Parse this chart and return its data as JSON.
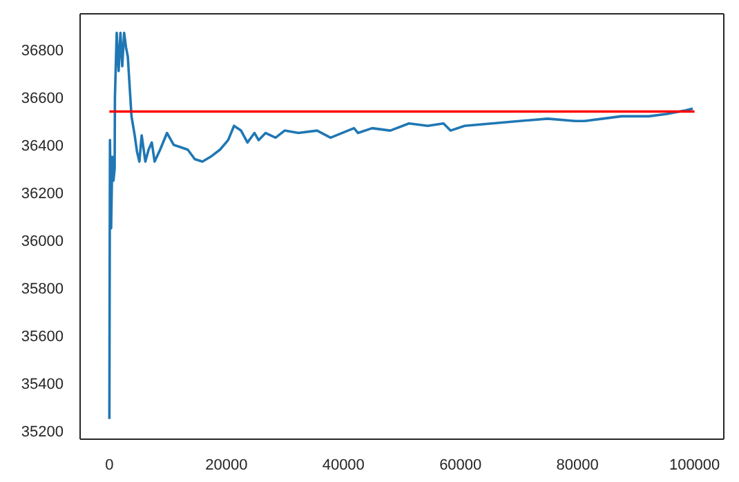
{
  "chart_data": {
    "type": "line",
    "xlim": [
      -5000,
      105000
    ],
    "ylim": [
      35165,
      36950
    ],
    "xticks": [
      0,
      20000,
      40000,
      60000,
      80000,
      100000
    ],
    "yticks": [
      35200,
      35400,
      35600,
      35800,
      36000,
      36200,
      36400,
      36600,
      36800
    ],
    "marker": "none",
    "line_style": "solid",
    "series": [
      {
        "color": "#1f77b4",
        "x": [
          0,
          100,
          300,
          500,
          700,
          900,
          950,
          1250,
          1580,
          1890,
          2200,
          2520,
          2840,
          3150,
          3780,
          4330,
          4730,
          5130,
          5520,
          6150,
          6700,
          7250,
          7730,
          8670,
          9850,
          11000,
          12200,
          13400,
          14600,
          15900,
          17300,
          18900,
          20300,
          21300,
          22500,
          23600,
          24800,
          25500,
          26700,
          28400,
          29950,
          32300,
          35500,
          37800,
          41800,
          42500,
          44900,
          48000,
          51200,
          54400,
          57100,
          58300,
          60700,
          65400,
          70100,
          74900,
          79600,
          81200,
          84300,
          87500,
          92200,
          95300,
          98500,
          99700
        ],
        "values": [
          35250,
          36420,
          36050,
          36350,
          36250,
          36300,
          36600,
          36870,
          36710,
          36870,
          36730,
          36870,
          36810,
          36770,
          36520,
          36440,
          36370,
          36330,
          36440,
          36330,
          36380,
          36410,
          36330,
          36380,
          36450,
          36400,
          36390,
          36380,
          36340,
          36330,
          36350,
          36380,
          36420,
          36480,
          36460,
          36410,
          36450,
          36420,
          36450,
          36430,
          36460,
          36450,
          36460,
          36430,
          36470,
          36450,
          36470,
          36460,
          36490,
          36480,
          36490,
          36460,
          36480,
          36490,
          36500,
          36510,
          36500,
          36500,
          36510,
          36520,
          36520,
          36530,
          36545,
          36552
        ]
      },
      {
        "type": "line",
        "color": "#ff0000",
        "x": [
          0,
          100000
        ],
        "values": [
          36540,
          36540
        ]
      }
    ]
  }
}
